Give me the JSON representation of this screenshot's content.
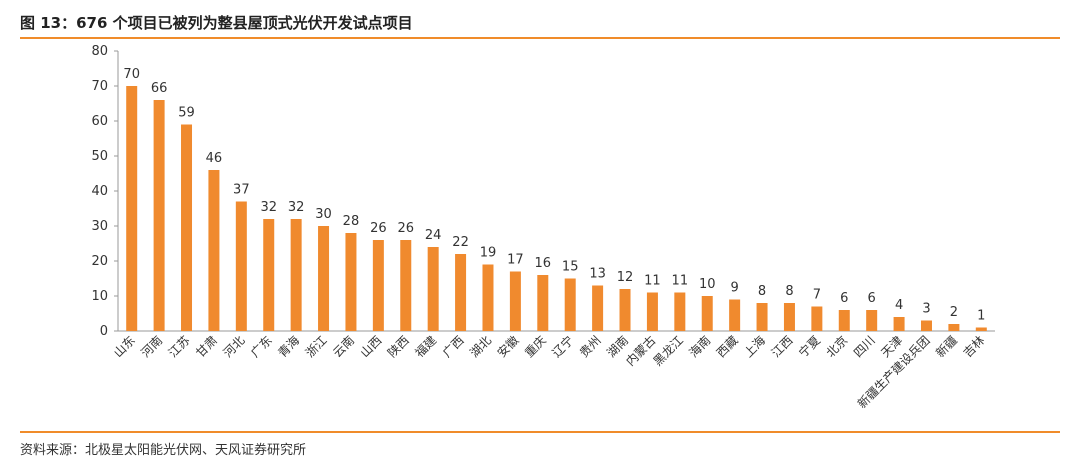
{
  "header": {
    "title": "图 13：676 个项目已被列为整县屋顶式光伏开发试点项目"
  },
  "footer": {
    "source": "资料来源：北极星太阳能光伏网、天风证券研究所"
  },
  "colors": {
    "bar": "#f08a2e",
    "rule": "#f08c2a"
  },
  "chart_data": {
    "type": "bar",
    "categories": [
      "山东",
      "河南",
      "江苏",
      "甘肃",
      "河北",
      "广东",
      "青海",
      "浙江",
      "云南",
      "山西",
      "陕西",
      "福建",
      "广西",
      "湖北",
      "安徽",
      "重庆",
      "辽宁",
      "贵州",
      "湖南",
      "内蒙古",
      "黑龙江",
      "海南",
      "西藏",
      "上海",
      "江西",
      "宁夏",
      "北京",
      "四川",
      "天津",
      "新疆生产建设兵团",
      "新疆",
      "吉林"
    ],
    "values": [
      70,
      66,
      59,
      46,
      37,
      32,
      32,
      30,
      28,
      26,
      26,
      24,
      22,
      19,
      17,
      16,
      15,
      13,
      12,
      11,
      11,
      10,
      9,
      8,
      8,
      7,
      6,
      6,
      4,
      3,
      2,
      1
    ],
    "yticks": [
      0,
      10,
      20,
      30,
      40,
      50,
      60,
      70,
      80
    ],
    "ylim": [
      0,
      80
    ],
    "grid": false,
    "legend": "none"
  }
}
